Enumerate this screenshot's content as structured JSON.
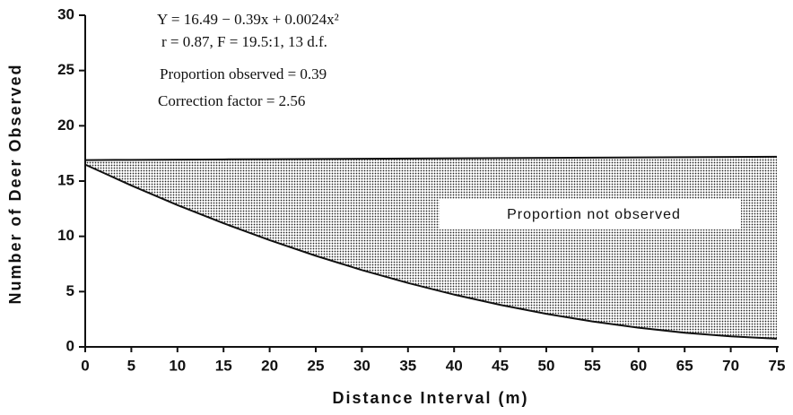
{
  "chart_data": {
    "type": "area",
    "x_label": "Distance Interval (m)",
    "y_label": "Number of Deer Observed",
    "annotations": [
      "Y = 16.49 − 0.39x + 0.0024x²",
      "r = 0.87, F = 19.5:1, 13 d.f.",
      "Proportion observed = 0.39",
      "Correction factor = 2.56"
    ],
    "area_label": "Proportion not observed",
    "x": [
      0,
      5,
      10,
      15,
      20,
      25,
      30,
      35,
      40,
      45,
      50,
      55,
      60,
      65,
      70,
      75
    ],
    "series": [
      {
        "color": "#111111",
        "values": [
          16.49,
          14.6,
          12.83,
          11.18,
          9.65,
          8.24,
          6.95,
          5.78,
          4.73,
          3.8,
          2.99,
          2.3,
          1.73,
          1.28,
          0.95,
          0.74
        ]
      },
      {
        "color": "#111111",
        "values": [
          16.9,
          16.92,
          16.94,
          16.96,
          16.98,
          17.0,
          17.02,
          17.04,
          17.06,
          17.08,
          17.1,
          17.12,
          17.14,
          17.16,
          17.18,
          17.2
        ]
      }
    ],
    "xlim": [
      0,
      75
    ],
    "xticks": [
      0,
      5,
      10,
      15,
      20,
      25,
      30,
      35,
      40,
      45,
      50,
      55,
      60,
      65,
      70,
      75
    ],
    "ylim": [
      0,
      30
    ],
    "yticks": [
      0,
      5,
      10,
      15,
      20,
      25,
      30
    ],
    "grid": false
  }
}
